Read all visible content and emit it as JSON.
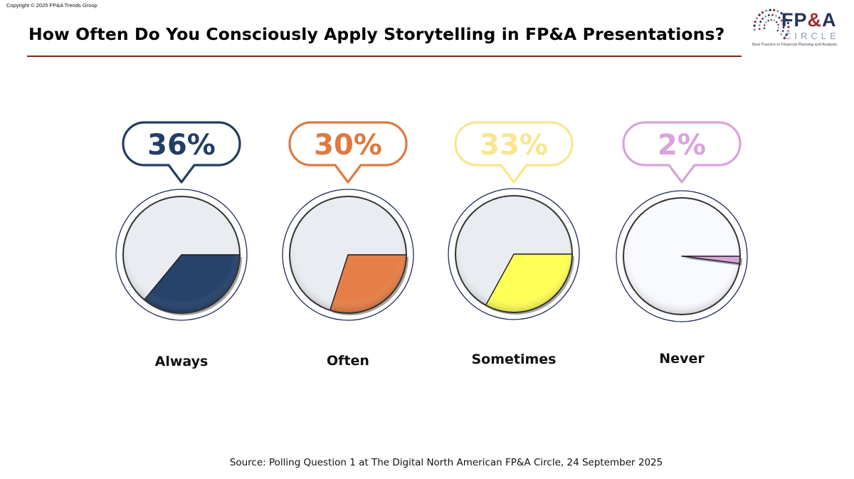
{
  "copyright": "Copyright © 2025 FP&A Trends Group",
  "logo": {
    "name_main": "FP",
    "name_amp": "&",
    "name_end": "A",
    "name_sub": "CIRCLE",
    "tagline": "Best Practice in Financial Planning and Analysis",
    "colors": {
      "navy": "#24345a",
      "red": "#9c2b2e",
      "gray": "#8a9bb5"
    }
  },
  "chart_data": {
    "type": "pie",
    "title": "How Often Do You Consciously Apply Storytelling in FP&A Presentations?",
    "source": "Source: Polling Question 1 at The Digital North American FP&A Circle, 24 September 2025",
    "unit": "%",
    "categories": [
      "Always",
      "Often",
      "Sometimes",
      "Never"
    ],
    "values": [
      36,
      30,
      33,
      2
    ],
    "value_labels": [
      "36%",
      "30%",
      "33%",
      "2%"
    ],
    "colors": {
      "Always": "#27436b",
      "Often": "#e57f47",
      "Sometimes": "#ffff55",
      "Never": "#d9a3db"
    },
    "label_colors": {
      "Always": "#223e63",
      "Often": "#e0793f",
      "Sometimes": "#fbe58e",
      "Never": "#d9a3db"
    },
    "remainder_color": "#e9ecf1",
    "layout": "one pie per category, each showing its share of 100%"
  }
}
